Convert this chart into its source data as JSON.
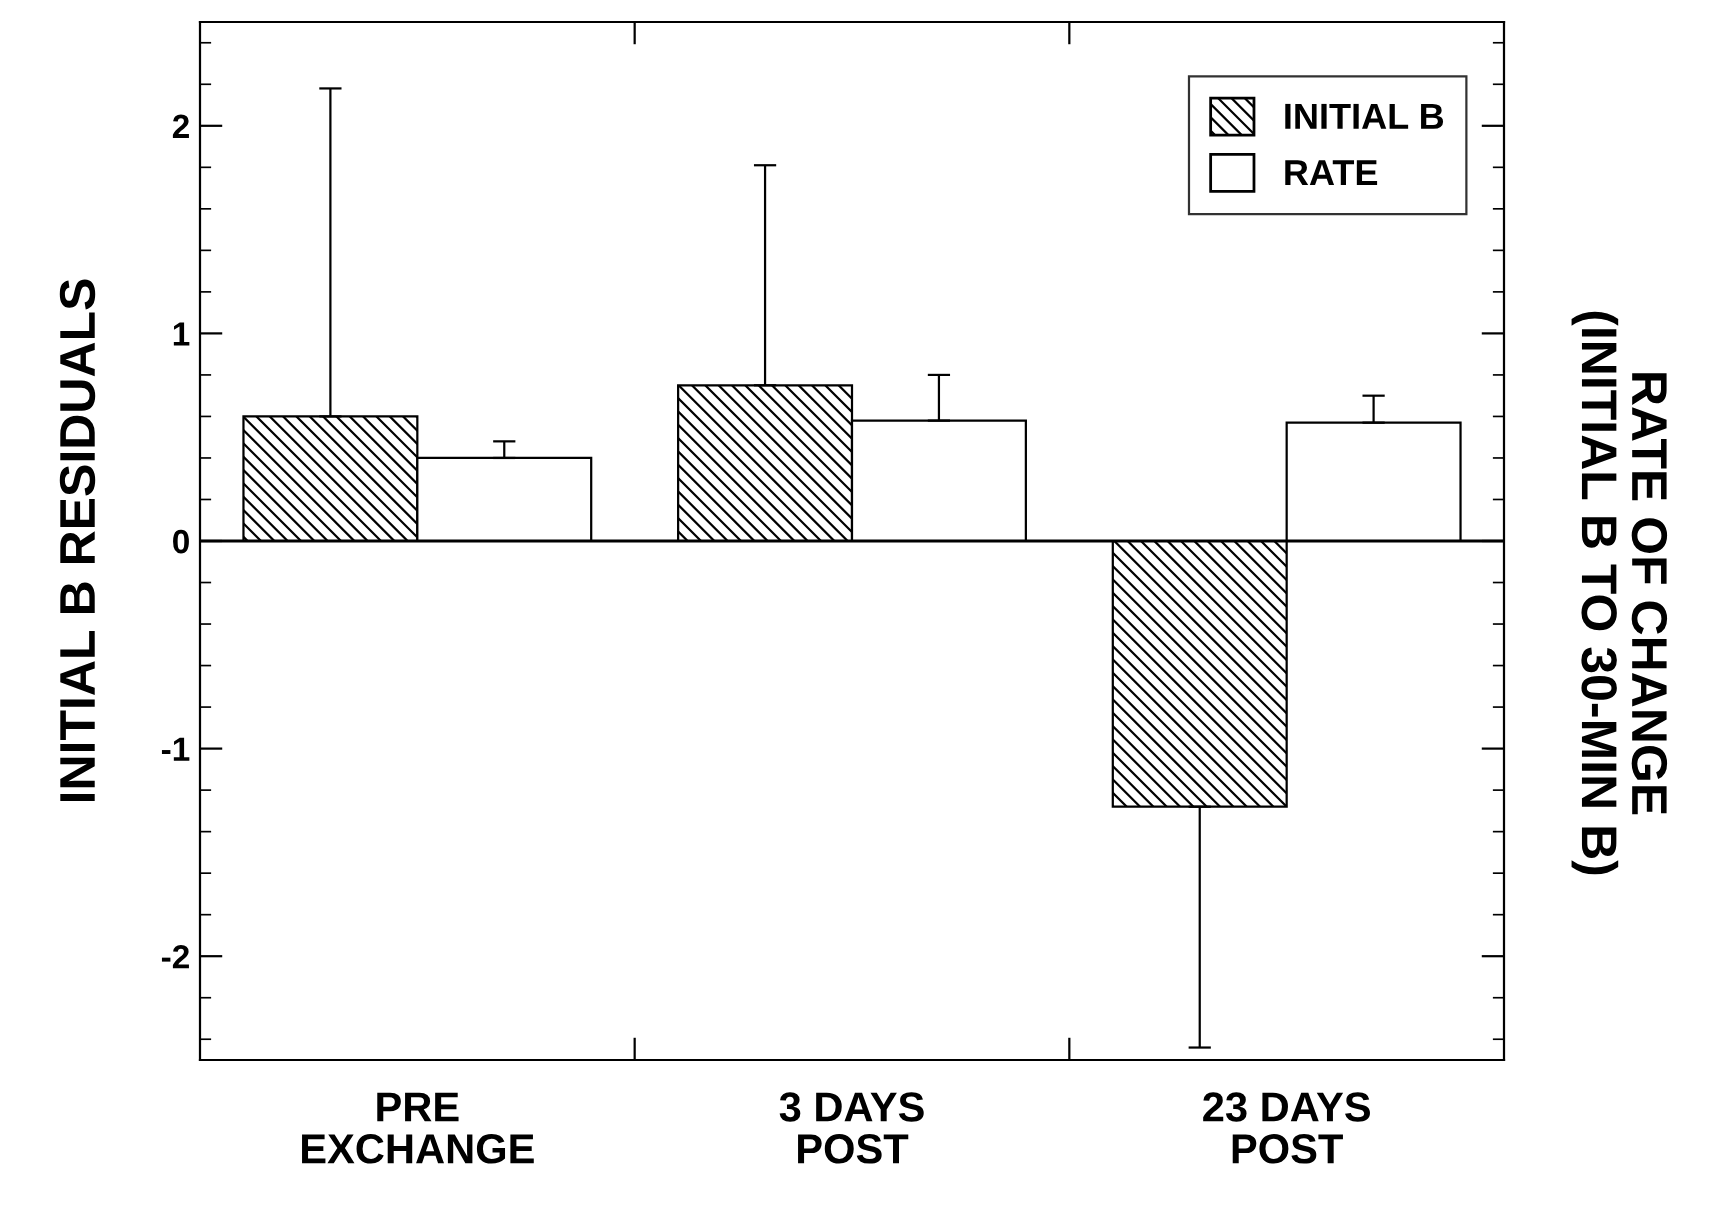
{
  "chart_data": {
    "type": "bar",
    "categories": [
      "PRE\nEXCHANGE",
      "3 DAYS\nPOST",
      "23 DAYS\nPOST"
    ],
    "ylabel": "INITIAL B RESIDUALS",
    "y2label": "RATE OF CHANGE\n(INITIAL B TO 30-MIN B)",
    "series": [
      {
        "name": "INITIAL B",
        "color": "#000000",
        "values": [
          0.6,
          0.75,
          -1.28
        ],
        "errors": [
          [
            0.6,
            2.18
          ],
          [
            0.75,
            1.81
          ],
          [
            -2.44,
            -1.28
          ]
        ]
      },
      {
        "name": "RATE",
        "color": "#ffffff",
        "values": [
          0.4,
          0.58,
          0.57
        ],
        "errors": [
          [
            0.4,
            0.48
          ],
          [
            0.58,
            0.8
          ],
          [
            0.57,
            0.7
          ]
        ]
      }
    ],
    "ylim": [
      -2.5,
      2.5
    ],
    "yticks": [
      -2,
      -1,
      0,
      1,
      2
    ],
    "ref_lines": [
      {
        "axis": "y",
        "value": 0
      }
    ],
    "grid": false,
    "legend": "top right"
  }
}
